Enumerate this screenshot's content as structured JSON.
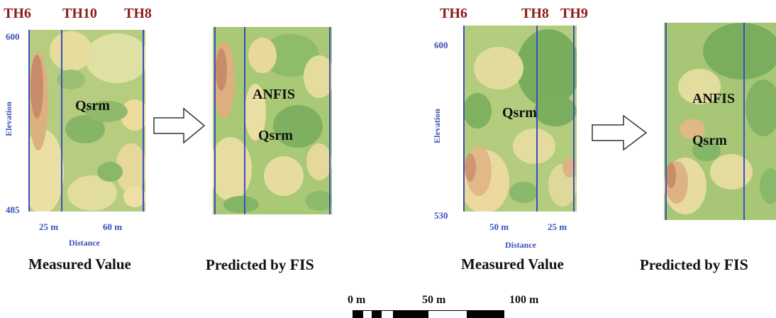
{
  "panels": [
    {
      "borehole_labels": [
        "TH6",
        "TH10",
        "TH8"
      ],
      "elevation_top": "600",
      "elevation_bottom": "485",
      "elevation_axis_label": "Elevation",
      "distance_ticks": [
        "25 m",
        "60 m"
      ],
      "distance_axis_label": "Distance",
      "measured_unit_label": "Qsrm",
      "measured_caption": "Measured Value",
      "predicted_labels": [
        "ANFIS",
        "Qsrm"
      ],
      "predicted_caption_main": "Predicted by ",
      "predicted_caption_suffix": "FIS"
    },
    {
      "borehole_labels": [
        "TH6",
        "TH8",
        "TH9"
      ],
      "elevation_top": "600",
      "elevation_bottom": "530",
      "elevation_axis_label": "Elevation",
      "distance_ticks": [
        "50 m",
        "25 m"
      ],
      "distance_axis_label": "Distance",
      "measured_unit_label": "Qsrm",
      "measured_caption": "Measured Value",
      "predicted_labels": [
        "ANFIS",
        "Qsrm"
      ],
      "predicted_caption_main": "Predicted by ",
      "predicted_caption_suffix": "FIS"
    }
  ],
  "scale_bar": {
    "labels": [
      "0 m",
      "50 m",
      "100 m"
    ]
  },
  "colors": {
    "borehole_label": "#8b1a1a",
    "axis_text": "#3b4fb8",
    "borehole_line": "#3a4fc0",
    "high_value": "#c98a6a",
    "mid_value": "#ecdfa0",
    "low_value": "#6fa657"
  }
}
